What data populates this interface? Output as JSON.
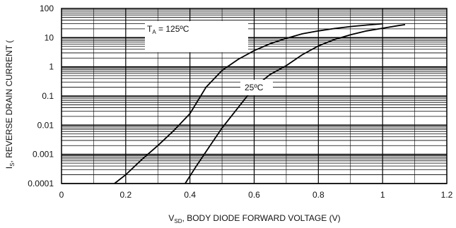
{
  "chart_data": {
    "type": "line",
    "xlabel_main": "V",
    "xlabel_sub": "SD",
    "xlabel_rest": ", BODY DIODE FORWARD VOLTAGE (V)",
    "ylabel_main": "I",
    "ylabel_sub": "S",
    "ylabel_rest": ", REVERSE DRAIN CURRENT (",
    "xlim": [
      0,
      1.2
    ],
    "ylim": [
      0.0001,
      100
    ],
    "yscale": "log",
    "grid": true,
    "x_ticks": [
      {
        "value": 0,
        "label": "0"
      },
      {
        "value": 0.2,
        "label": "0.2"
      },
      {
        "value": 0.4,
        "label": "0.4"
      },
      {
        "value": 0.6,
        "label": "0.6"
      },
      {
        "value": 0.8,
        "label": "0.8"
      },
      {
        "value": 1.0,
        "label": "1"
      },
      {
        "value": 1.2,
        "label": "1.2"
      }
    ],
    "y_ticks": [
      {
        "value": 100,
        "label": "100"
      },
      {
        "value": 10,
        "label": "10"
      },
      {
        "value": 1,
        "label": "1"
      },
      {
        "value": 0.1,
        "label": "0.1"
      },
      {
        "value": 0.01,
        "label": "0.01"
      },
      {
        "value": 0.001,
        "label": "0.001"
      },
      {
        "value": 0.0001,
        "label": "0.0001"
      }
    ],
    "annotations": [
      {
        "main": "T",
        "sub": "A",
        "rest": " = 125ºC"
      },
      {
        "main": "25ºC",
        "sub": "",
        "rest": ""
      }
    ],
    "series": [
      {
        "x": [
          0.165,
          0.2,
          0.25,
          0.3,
          0.35,
          0.4,
          0.45,
          0.5,
          0.55,
          0.6,
          0.65,
          0.7,
          0.75,
          0.8,
          0.85,
          0.9,
          0.95,
          1.0
        ],
        "y": [
          0.0001,
          0.0002,
          0.00066,
          0.002,
          0.0066,
          0.025,
          0.2,
          0.75,
          1.8,
          3.6,
          6.2,
          9.5,
          13.5,
          17,
          20.5,
          24,
          27,
          30
        ]
      },
      {
        "x": [
          0.385,
          0.42,
          0.46,
          0.5,
          0.55,
          0.6,
          0.65,
          0.7,
          0.75,
          0.8,
          0.85,
          0.9,
          0.95,
          1.0,
          1.05,
          1.07
        ],
        "y": [
          0.0001,
          0.0004,
          0.0018,
          0.008,
          0.04,
          0.2,
          0.55,
          1.1,
          2.6,
          5.2,
          8.6,
          12.5,
          17,
          21,
          26,
          28
        ]
      }
    ]
  }
}
